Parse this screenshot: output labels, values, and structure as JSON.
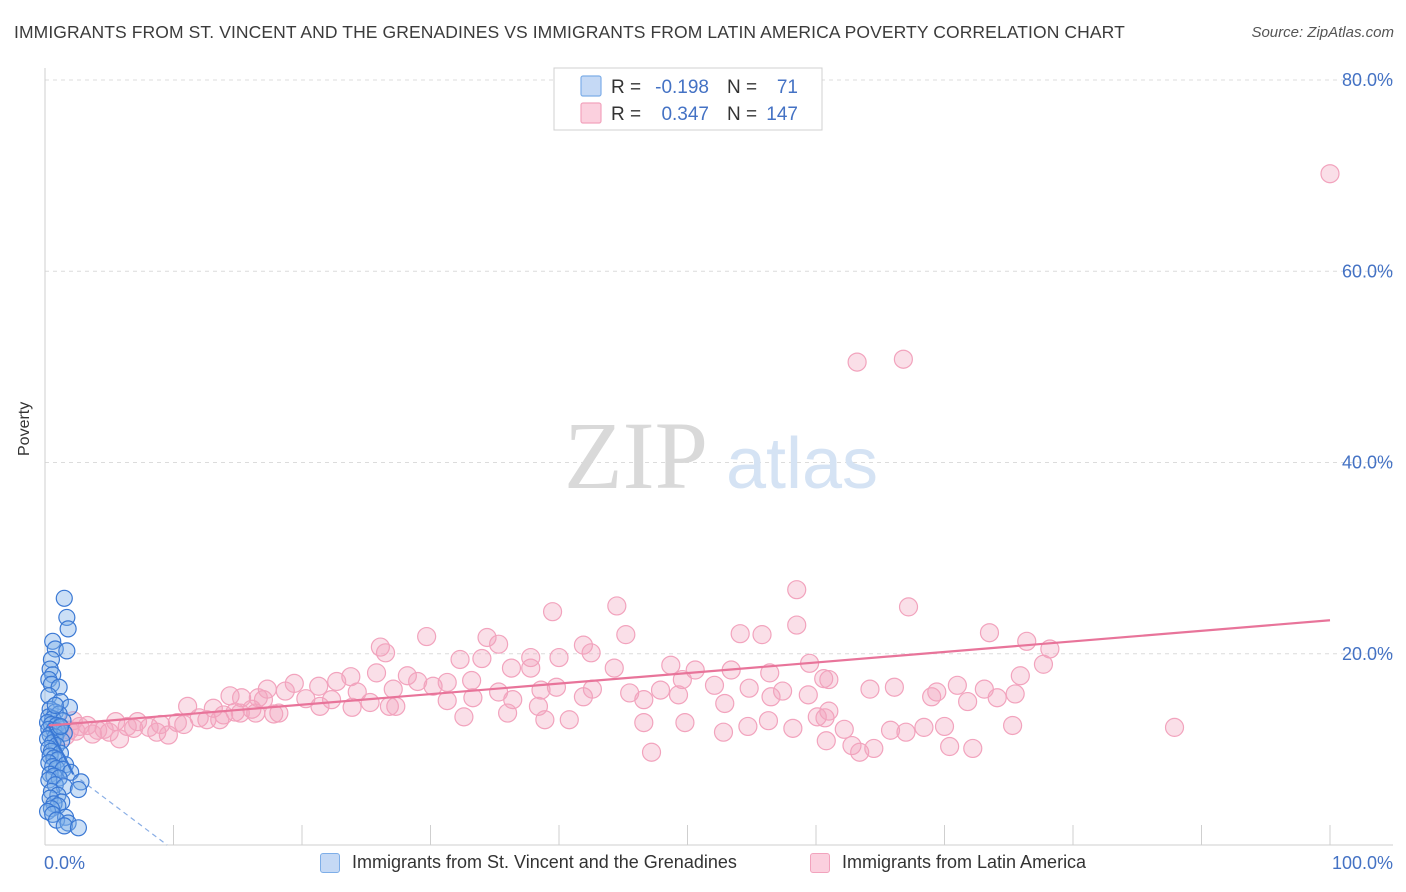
{
  "title": "IMMIGRANTS FROM ST. VINCENT AND THE GRENADINES VS IMMIGRANTS FROM LATIN AMERICA POVERTY CORRELATION CHART",
  "source": "Source: ZipAtlas.com",
  "watermark": {
    "zip": "ZIP",
    "atlas": "atlas"
  },
  "colors": {
    "blue": "#7eaee8",
    "blue_line": "#3a78d4",
    "pink": "#f2a3bd",
    "pink_line": "#e8749a",
    "tick": "#4472c4"
  },
  "legend": {
    "rows": [
      {
        "r_label": "R =",
        "r_value": "-0.198",
        "n_label": "N =",
        "n_value": "71"
      },
      {
        "r_label": "R =",
        "r_value": "0.347",
        "n_label": "N =",
        "n_value": "147"
      }
    ]
  },
  "bottom_legend": [
    "Immigrants from St. Vincent and the Grenadines",
    "Immigrants from Latin America"
  ],
  "chart_data": {
    "type": "scatter",
    "xlabel": "",
    "ylabel": "Poverty",
    "xlim": [
      0,
      100
    ],
    "ylim": [
      0,
      80
    ],
    "x_tick_labels": [
      "0.0%",
      "100.0%"
    ],
    "y_ticks": [
      20,
      40,
      60,
      80
    ],
    "y_tick_labels": [
      "20.0%",
      "40.0%",
      "60.0%",
      "80.0%"
    ],
    "grid": "horizontal dashed",
    "legend_placement": "top-center",
    "series": [
      {
        "name": "Immigrants from St. Vincent and the Grenadines",
        "r": -0.198,
        "n": 71,
        "trend": {
          "x": [
            0.3,
            2.2
          ],
          "y": [
            12.4,
            7.4
          ],
          "dashed_to": [
            9.5,
            0
          ]
        },
        "points": [
          [
            1.5,
            25.8
          ],
          [
            1.7,
            23.8
          ],
          [
            1.8,
            22.6
          ],
          [
            0.6,
            21.3
          ],
          [
            0.8,
            20.5
          ],
          [
            1.7,
            20.3
          ],
          [
            0.5,
            19.4
          ],
          [
            0.4,
            18.4
          ],
          [
            0.6,
            17.8
          ],
          [
            0.3,
            17.3
          ],
          [
            0.5,
            16.8
          ],
          [
            1.1,
            16.5
          ],
          [
            0.3,
            15.6
          ],
          [
            1.2,
            15.0
          ],
          [
            1.9,
            14.4
          ],
          [
            0.4,
            14.2
          ],
          [
            0.8,
            13.9
          ],
          [
            1.1,
            13.7
          ],
          [
            0.3,
            13.4
          ],
          [
            0.6,
            13.2
          ],
          [
            1.4,
            13.0
          ],
          [
            0.2,
            12.8
          ],
          [
            0.5,
            12.6
          ],
          [
            0.9,
            12.5
          ],
          [
            1.2,
            12.3
          ],
          [
            0.3,
            12.1
          ],
          [
            0.7,
            12.0
          ],
          [
            1.0,
            11.9
          ],
          [
            1.5,
            11.7
          ],
          [
            0.4,
            11.5
          ],
          [
            0.8,
            11.3
          ],
          [
            0.2,
            11.1
          ],
          [
            1.3,
            10.9
          ],
          [
            0.6,
            10.7
          ],
          [
            0.9,
            10.4
          ],
          [
            0.3,
            10.1
          ],
          [
            0.5,
            9.8
          ],
          [
            1.2,
            9.6
          ],
          [
            0.4,
            9.3
          ],
          [
            0.7,
            9.1
          ],
          [
            1.0,
            8.9
          ],
          [
            0.3,
            8.6
          ],
          [
            1.6,
            8.4
          ],
          [
            0.6,
            8.2
          ],
          [
            0.9,
            8.0
          ],
          [
            1.4,
            7.9
          ],
          [
            2.0,
            7.6
          ],
          [
            0.4,
            7.4
          ],
          [
            0.7,
            7.2
          ],
          [
            1.1,
            7.0
          ],
          [
            0.3,
            6.8
          ],
          [
            2.8,
            6.6
          ],
          [
            0.8,
            6.3
          ],
          [
            1.5,
            6.1
          ],
          [
            2.6,
            5.8
          ],
          [
            0.5,
            5.6
          ],
          [
            1.0,
            5.2
          ],
          [
            0.4,
            4.9
          ],
          [
            1.3,
            4.5
          ],
          [
            0.7,
            4.3
          ],
          [
            1.0,
            4.1
          ],
          [
            0.5,
            3.8
          ],
          [
            0.2,
            3.5
          ],
          [
            0.6,
            3.2
          ],
          [
            1.6,
            2.9
          ],
          [
            0.9,
            2.6
          ],
          [
            1.8,
            2.3
          ],
          [
            1.5,
            2.0
          ],
          [
            2.6,
            1.8
          ],
          [
            1.2,
            12.4
          ],
          [
            0.8,
            14.6
          ]
        ]
      },
      {
        "name": "Immigrants from Latin America",
        "r": 0.347,
        "n": 147,
        "trend": {
          "x": [
            0.3,
            100
          ],
          "y": [
            12.5,
            23.5
          ]
        },
        "points": [
          [
            100,
            70.2
          ],
          [
            63.2,
            50.5
          ],
          [
            66.8,
            50.8
          ],
          [
            58.5,
            26.7
          ],
          [
            44.5,
            25.0
          ],
          [
            67.2,
            24.9
          ],
          [
            39.5,
            24.4
          ],
          [
            73.5,
            22.2
          ],
          [
            58.5,
            23.0
          ],
          [
            29.7,
            21.8
          ],
          [
            34.4,
            21.7
          ],
          [
            45.2,
            22.0
          ],
          [
            54.1,
            22.1
          ],
          [
            55.8,
            22.0
          ],
          [
            76.4,
            21.3
          ],
          [
            78.2,
            20.5
          ],
          [
            41.9,
            20.9
          ],
          [
            26.1,
            20.7
          ],
          [
            26.5,
            20.1
          ],
          [
            42.5,
            20.1
          ],
          [
            35.3,
            21.0
          ],
          [
            32.3,
            19.4
          ],
          [
            34.0,
            19.5
          ],
          [
            37.8,
            19.6
          ],
          [
            40.0,
            19.6
          ],
          [
            44.3,
            18.5
          ],
          [
            48.7,
            18.8
          ],
          [
            50.6,
            18.3
          ],
          [
            53.4,
            18.3
          ],
          [
            56.4,
            18.0
          ],
          [
            59.5,
            19.0
          ],
          [
            60.6,
            17.4
          ],
          [
            61.0,
            17.3
          ],
          [
            36.3,
            18.5
          ],
          [
            37.8,
            18.5
          ],
          [
            25.8,
            18.0
          ],
          [
            28.2,
            17.7
          ],
          [
            30.2,
            16.6
          ],
          [
            31.3,
            17.0
          ],
          [
            22.7,
            17.1
          ],
          [
            23.8,
            17.6
          ],
          [
            19.4,
            16.9
          ],
          [
            21.3,
            16.6
          ],
          [
            17.3,
            16.3
          ],
          [
            18.7,
            16.1
          ],
          [
            16.6,
            15.4
          ],
          [
            14.4,
            15.6
          ],
          [
            15.3,
            15.4
          ],
          [
            24.3,
            16.0
          ],
          [
            27.1,
            16.3
          ],
          [
            29.0,
            17.1
          ],
          [
            33.2,
            17.2
          ],
          [
            38.6,
            16.2
          ],
          [
            39.8,
            16.5
          ],
          [
            42.6,
            16.3
          ],
          [
            45.5,
            15.9
          ],
          [
            47.9,
            16.2
          ],
          [
            49.6,
            17.3
          ],
          [
            52.1,
            16.7
          ],
          [
            54.8,
            16.4
          ],
          [
            57.4,
            16.1
          ],
          [
            69.4,
            16.0
          ],
          [
            71.0,
            16.7
          ],
          [
            73.1,
            16.3
          ],
          [
            75.5,
            15.8
          ],
          [
            77.7,
            18.9
          ],
          [
            75.9,
            17.7
          ],
          [
            17.0,
            15.2
          ],
          [
            20.3,
            15.3
          ],
          [
            22.3,
            15.2
          ],
          [
            25.3,
            14.9
          ],
          [
            27.3,
            14.5
          ],
          [
            31.3,
            15.1
          ],
          [
            33.3,
            15.4
          ],
          [
            35.3,
            16.0
          ],
          [
            36.4,
            15.2
          ],
          [
            38.4,
            14.5
          ],
          [
            41.9,
            15.5
          ],
          [
            46.6,
            15.2
          ],
          [
            49.3,
            15.7
          ],
          [
            52.9,
            14.8
          ],
          [
            56.5,
            15.5
          ],
          [
            59.4,
            15.7
          ],
          [
            64.2,
            16.3
          ],
          [
            66.1,
            16.5
          ],
          [
            69.0,
            15.5
          ],
          [
            71.8,
            15.0
          ],
          [
            74.1,
            15.4
          ],
          [
            11.1,
            14.5
          ],
          [
            13.1,
            14.3
          ],
          [
            14.8,
            13.9
          ],
          [
            16.1,
            14.2
          ],
          [
            17.8,
            13.7
          ],
          [
            12.0,
            13.3
          ],
          [
            13.6,
            13.1
          ],
          [
            10.3,
            12.8
          ],
          [
            9.0,
            12.6
          ],
          [
            8.1,
            12.3
          ],
          [
            6.4,
            12.4
          ],
          [
            7.2,
            12.9
          ],
          [
            5.5,
            12.9
          ],
          [
            4.6,
            12.1
          ],
          [
            3.3,
            12.5
          ],
          [
            2.7,
            12.4
          ],
          [
            2.2,
            13.0
          ],
          [
            1.9,
            12.0
          ],
          [
            1.6,
            11.4
          ],
          [
            2.4,
            11.9
          ],
          [
            3.7,
            11.6
          ],
          [
            5.0,
            11.8
          ],
          [
            5.8,
            11.1
          ],
          [
            6.9,
            12.2
          ],
          [
            8.7,
            11.8
          ],
          [
            9.6,
            11.5
          ],
          [
            10.8,
            12.6
          ],
          [
            12.6,
            13.1
          ],
          [
            13.9,
            13.6
          ],
          [
            15.2,
            13.8
          ],
          [
            16.4,
            13.8
          ],
          [
            18.2,
            13.8
          ],
          [
            21.4,
            14.5
          ],
          [
            23.9,
            14.4
          ],
          [
            26.8,
            14.5
          ],
          [
            32.6,
            13.4
          ],
          [
            36.0,
            13.8
          ],
          [
            38.9,
            13.1
          ],
          [
            40.8,
            13.1
          ],
          [
            46.6,
            12.8
          ],
          [
            49.8,
            12.8
          ],
          [
            52.8,
            11.8
          ],
          [
            56.3,
            13.0
          ],
          [
            58.2,
            12.2
          ],
          [
            60.1,
            13.4
          ],
          [
            62.2,
            12.1
          ],
          [
            65.8,
            12.0
          ],
          [
            68.4,
            12.3
          ],
          [
            70.4,
            10.3
          ],
          [
            72.2,
            10.1
          ],
          [
            70.0,
            12.4
          ],
          [
            75.3,
            12.5
          ],
          [
            47.2,
            9.7
          ],
          [
            60.8,
            10.9
          ],
          [
            62.8,
            10.4
          ],
          [
            64.5,
            10.1
          ],
          [
            67.0,
            11.8
          ],
          [
            61.0,
            14.0
          ],
          [
            60.7,
            13.3
          ],
          [
            63.4,
            9.7
          ],
          [
            87.9,
            12.3
          ],
          [
            54.7,
            12.4
          ],
          [
            4.1,
            12.0
          ]
        ]
      }
    ]
  }
}
